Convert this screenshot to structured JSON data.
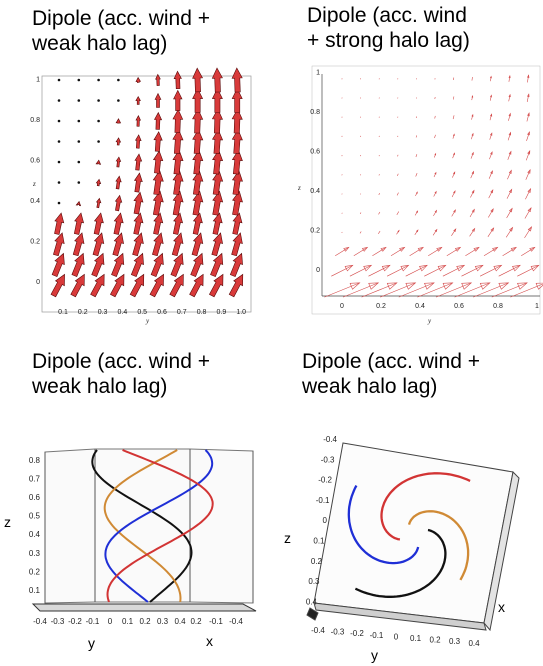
{
  "panels": [
    {
      "title": "Dipole (acc. wind +\nweak halo lag)",
      "xlabel": "y",
      "ylabel": "z",
      "xticks": [
        "0.1",
        "0.2",
        "0.3",
        "0.4",
        "0.5",
        "0.6",
        "0.7",
        "0.8",
        "0.9",
        "1.0"
      ],
      "yticks": [
        "0",
        "0.2",
        "0.4",
        "0.6",
        "0.8",
        "1"
      ]
    },
    {
      "title": "Dipole (acc. wind\n+ strong halo lag)",
      "xlabel": "y",
      "ylabel": "z",
      "xticks": [
        "0",
        "0.2",
        "0.4",
        "0.6",
        "0.8",
        "1"
      ],
      "yticks": [
        "0",
        "0.2",
        "0.4",
        "0.6",
        "0.8",
        "1"
      ]
    },
    {
      "title": "Dipole (acc. wind +\nweak halo lag)",
      "axis_z": "z",
      "axis_y": "y",
      "axis_x": "x",
      "zticks": [
        "0.1",
        "0.2",
        "0.3",
        "0.4",
        "0.5",
        "0.6",
        "0.7",
        "0.8"
      ],
      "yticks": [
        "-0.4",
        "-0.3",
        "-0.2",
        "-0.1",
        "0",
        "0.1",
        "0.2",
        "0.3",
        "0.4"
      ],
      "xticks": [
        "0.2",
        "-0.1",
        "-0.4"
      ]
    },
    {
      "title": "Dipole (acc. wind +\nweak halo lag)",
      "axis_z": "z",
      "axis_y": "y",
      "axis_x": "x",
      "zticks": [
        "-0.4",
        "-0.3",
        "-0.2",
        "-0.1",
        "0",
        "0.1",
        "0.2",
        "0.3",
        "0.4"
      ],
      "yticks": [
        "-0.4",
        "-0.3",
        "-0.2",
        "-0.1",
        "0",
        "0.1",
        "0.2",
        "0.3",
        "0.4"
      ]
    }
  ],
  "colors": {
    "arrow_fill": "#d83a3a",
    "arrow_stroke": "#5a0808",
    "thin_arrow": "#d44a4a",
    "black_line": "#111111",
    "orange_line": "#d08a35",
    "blue_line": "#1f2fd6",
    "red_line": "#d23434",
    "frame": "#555555"
  }
}
